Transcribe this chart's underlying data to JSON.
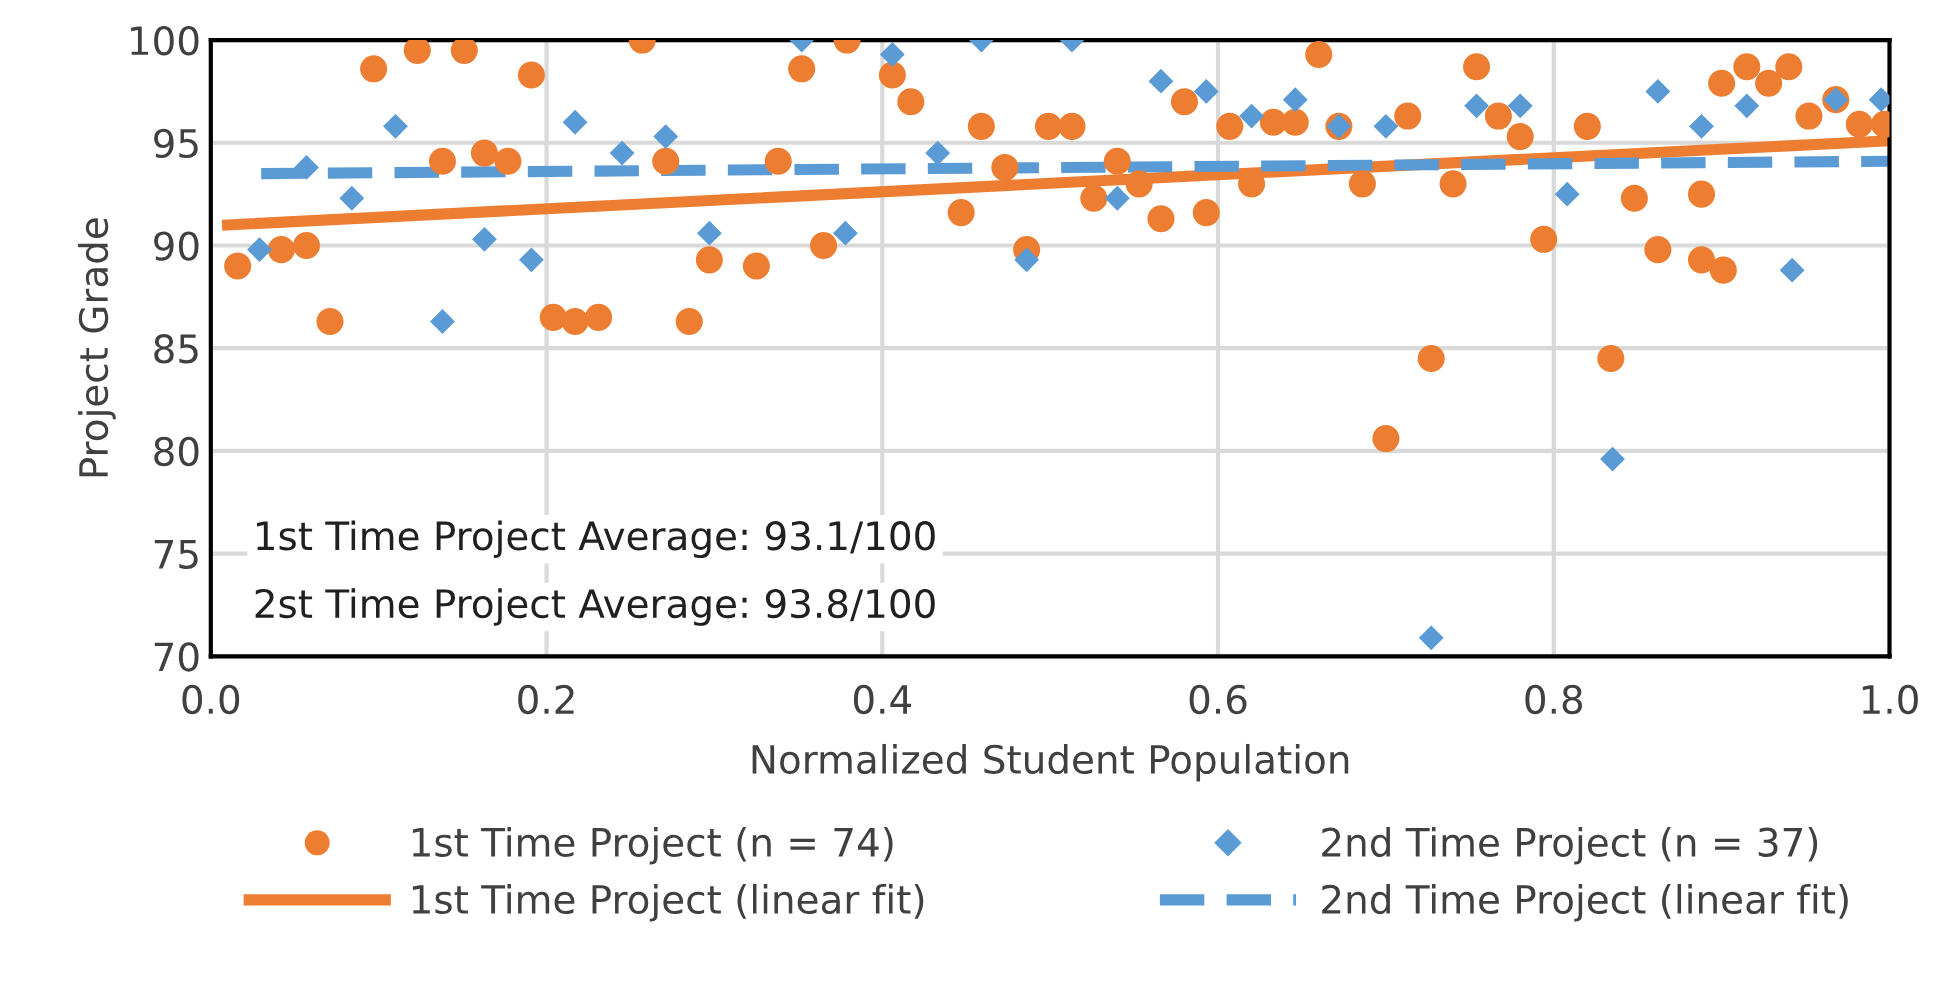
{
  "chart_data": {
    "type": "scatter",
    "xlabel": "Normalized Student Population",
    "ylabel": "Project Grade",
    "xlim": [
      0,
      1
    ],
    "xticks": [
      {
        "value": 0,
        "label": "0.0"
      },
      {
        "value": 0.2,
        "label": "0.2"
      },
      {
        "value": 0.4,
        "label": "0.4"
      },
      {
        "value": 0.6,
        "label": "0.6"
      },
      {
        "value": 0.8,
        "label": "0.8"
      },
      {
        "value": 1,
        "label": "1.0"
      }
    ],
    "ylim": [
      70,
      100
    ],
    "yticks": [
      70,
      75,
      80,
      85,
      90,
      95,
      100
    ],
    "grid": true,
    "legend": "bottom",
    "annotations": [
      "1st Time Project Average: 93.1/100",
      "2st Time Project Average: 93.8/100"
    ],
    "series": [
      {
        "name": "1st Time Project (n = 74)",
        "marker": "circle",
        "color": "#ed7d31",
        "x": [
          0.016,
          0.042,
          0.057,
          0.071,
          0.097,
          0.123,
          0.138,
          0.151,
          0.163,
          0.177,
          0.191,
          0.204,
          0.217,
          0.231,
          0.257,
          0.271,
          0.285,
          0.297,
          0.325,
          0.338,
          0.352,
          0.365,
          0.379,
          0.406,
          0.417,
          0.447,
          0.459,
          0.473,
          0.486,
          0.499,
          0.513,
          0.526,
          0.54,
          0.553,
          0.566,
          0.58,
          0.593,
          0.607,
          0.62,
          0.633,
          0.646,
          0.66,
          0.672,
          0.686,
          0.7,
          0.713,
          0.727,
          0.74,
          0.754,
          0.767,
          0.78,
          0.794,
          0.82,
          0.834,
          0.848,
          0.862,
          0.888,
          0.888,
          0.9,
          0.901,
          0.915,
          0.928,
          0.94,
          0.952,
          0.968,
          0.982,
          0.997
        ],
        "values": [
          89.0,
          89.8,
          90.0,
          86.3,
          98.6,
          99.5,
          94.1,
          99.5,
          94.5,
          94.1,
          98.3,
          86.5,
          86.3,
          86.5,
          100,
          94.1,
          86.3,
          89.3,
          89.0,
          94.1,
          98.6,
          90.0,
          100,
          98.3,
          97.0,
          91.6,
          95.8,
          93.8,
          89.8,
          95.8,
          95.8,
          92.3,
          94.1,
          93.0,
          91.3,
          97.0,
          91.6,
          95.8,
          93.0,
          96.0,
          96.0,
          99.3,
          95.8,
          93.0,
          80.6,
          96.3,
          84.5,
          93.0,
          98.7,
          96.3,
          95.3,
          90.3,
          95.8,
          84.5,
          92.3,
          89.8,
          89.3,
          92.5,
          97.9,
          88.8,
          98.7,
          97.9,
          98.7,
          96.3,
          97.1,
          95.9,
          95.9
        ]
      },
      {
        "name": "2nd Time Project (n = 37)",
        "marker": "diamond",
        "color": "#5b9bd5",
        "x": [
          0.029,
          0.057,
          0.084,
          0.11,
          0.138,
          0.163,
          0.191,
          0.217,
          0.245,
          0.271,
          0.297,
          0.352,
          0.378,
          0.406,
          0.433,
          0.459,
          0.486,
          0.513,
          0.54,
          0.566,
          0.593,
          0.62,
          0.646,
          0.672,
          0.7,
          0.727,
          0.754,
          0.78,
          0.808,
          0.835,
          0.862,
          0.888,
          0.915,
          0.942,
          0.968,
          0.995
        ],
        "values": [
          89.8,
          93.8,
          92.3,
          95.8,
          86.3,
          90.3,
          89.3,
          96.0,
          94.5,
          95.3,
          90.6,
          100,
          90.6,
          99.3,
          94.5,
          100,
          89.3,
          100,
          92.3,
          98.0,
          97.5,
          96.3,
          97.1,
          95.8,
          95.8,
          70.9,
          96.8,
          96.8,
          92.5,
          79.6,
          97.5,
          95.8,
          96.8,
          88.8,
          97.1,
          97.1
        ]
      },
      {
        "name": "1st Time Project (linear fit)",
        "type": "line",
        "line_style": "solid",
        "color": "#ed7d31",
        "x": [
          0.01,
          1.0
        ],
        "values": [
          91.0,
          95.1
        ]
      },
      {
        "name": "2nd Time Project (linear fit)",
        "type": "line",
        "line_style": "dashed",
        "color": "#5b9bd5",
        "x": [
          0.03,
          1.0
        ],
        "values": [
          93.5,
          94.1
        ]
      }
    ]
  }
}
